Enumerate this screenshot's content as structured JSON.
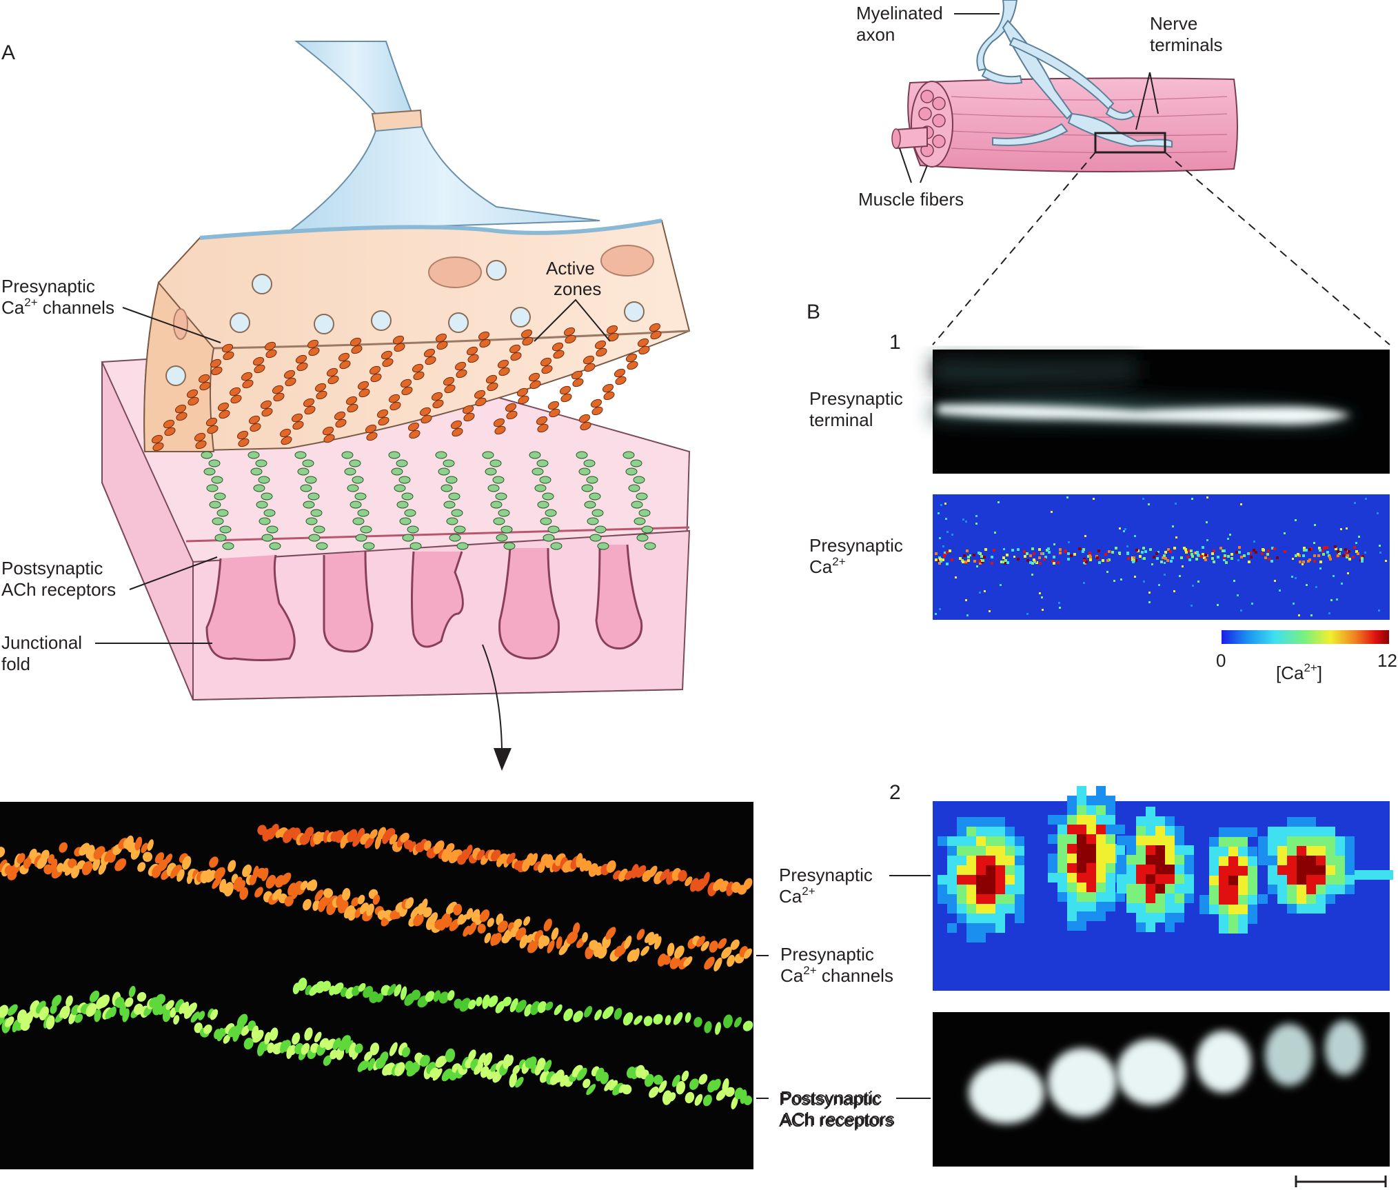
{
  "colors": {
    "presynaptic_fill": "#fbe3cf",
    "postsynaptic_fill": "#f9d1e0",
    "axon_fill": "#cfe6f4",
    "muscle_fill": "#f2a9c4",
    "channel_color": "#e0692a",
    "receptor_color": "#8ed18e",
    "micrograph_bg": "#050505",
    "ca_image_bg": "#1c39d6"
  },
  "panel_a": {
    "letter": "A",
    "labels": {
      "presynaptic_channels_line1": "Presynaptic",
      "presynaptic_channels_line2_base": "Ca",
      "presynaptic_channels_line2_sup": "2+",
      "presynaptic_channels_line2_rest": " channels",
      "active_zones_line1": "Active",
      "active_zones_line2": "zones",
      "ach_line1": "Postsynaptic",
      "ach_line2": "ACh receptors",
      "fold_line1": "Junctional",
      "fold_line2": "fold"
    }
  },
  "micrograph": {
    "label_channels_line1": "Presynaptic",
    "label_channels_base": "Ca",
    "label_channels_sup": "2+",
    "label_channels_rest": " channels",
    "label_receptors_line1": "Postsynaptic",
    "label_receptors_line2": "ACh receptors"
  },
  "inset": {
    "myelinated_line1": "Myelinated",
    "myelinated_line2": "axon",
    "nerve_line1": "Nerve",
    "nerve_line2": "terminals",
    "muscle_fibers": "Muscle fibers"
  },
  "panel_b": {
    "letter": "B",
    "sub1": "1",
    "sub2": "2",
    "terminal_line1": "Presynaptic",
    "terminal_line2": "terminal",
    "ca_line1": "Presynaptic",
    "ca_base": "Ca",
    "ca_sup": "2+",
    "colorbar_min": "0",
    "colorbar_max": "12",
    "colorbar_label_open": "[Ca",
    "colorbar_label_sup": "2+",
    "colorbar_label_close": "]",
    "colorbar_colors": [
      "#1a1ee6",
      "#1a8ff0",
      "#3fe0f0",
      "#7cf07c",
      "#f0f030",
      "#f08020",
      "#e01010",
      "#8a0000"
    ],
    "label2_ca_line1": "Presynaptic",
    "label2_ca_base": "Ca",
    "label2_ca_sup": "2+",
    "label2_ach_line1": "Postsynaptic",
    "label2_ach_line2": "ACh receptors"
  }
}
